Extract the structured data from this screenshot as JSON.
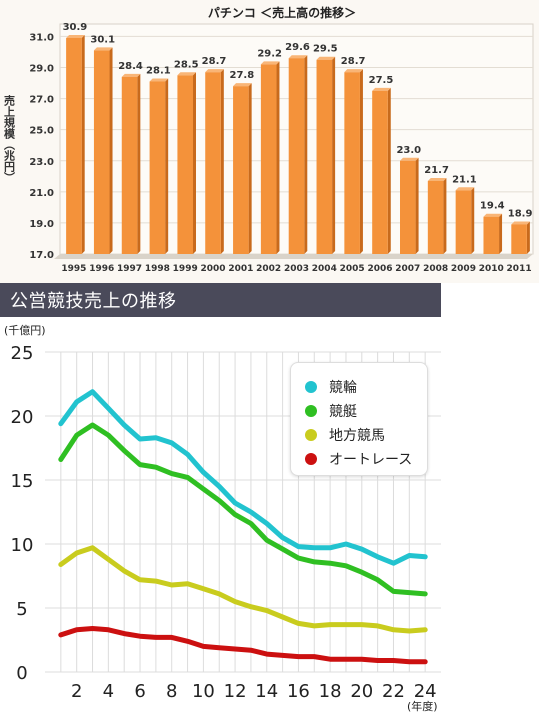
{
  "chart_data": [
    {
      "type": "bar",
      "title": "パチンコ ＜売上高の推移＞",
      "ylabel": "売上規模（兆円）",
      "categories": [
        "1995",
        "1996",
        "1997",
        "1998",
        "1999",
        "2000",
        "2001",
        "2002",
        "2003",
        "2004",
        "2005",
        "2006",
        "2007",
        "2008",
        "2009",
        "2010",
        "2011"
      ],
      "values": [
        30.9,
        30.1,
        28.4,
        28.1,
        28.5,
        28.7,
        27.8,
        29.2,
        29.6,
        29.5,
        28.7,
        27.5,
        23.0,
        21.7,
        21.1,
        19.4,
        18.9
      ],
      "value_labels": [
        "30.9",
        "30.1",
        "28.4",
        "28.1",
        "28.5",
        "28.7",
        "27.8",
        "29.2",
        "29.6",
        "29.5",
        "28.7",
        "27.5",
        "23.0",
        "21.7",
        "21.1",
        "19.4",
        "18.9"
      ],
      "ylim": [
        17.0,
        31.8
      ],
      "yticks": [
        "17.0",
        "19.0",
        "21.0",
        "23.0",
        "25.0",
        "27.0",
        "29.0",
        "31.0"
      ],
      "bar_color": "#f4923a",
      "grid": true
    },
    {
      "type": "line",
      "title": "公営競技売上の推移",
      "yunit": "(千億円)",
      "xunit": "(年度)",
      "x": [
        1,
        2,
        3,
        4,
        5,
        6,
        7,
        8,
        9,
        10,
        11,
        12,
        13,
        14,
        15,
        16,
        17,
        18,
        19,
        20,
        21,
        22,
        23,
        24
      ],
      "xticks": [
        "2",
        "4",
        "6",
        "8",
        "10",
        "12",
        "14",
        "16",
        "18",
        "20",
        "22",
        "24"
      ],
      "ylim": [
        0,
        25
      ],
      "yticks": [
        "0",
        "5",
        "10",
        "15",
        "20",
        "25"
      ],
      "grid": true,
      "legend_position": "top-right",
      "series": [
        {
          "name": "競輪",
          "color": "#22c3cf",
          "values": [
            19.4,
            21.1,
            21.9,
            20.6,
            19.3,
            18.2,
            18.3,
            17.9,
            17.0,
            15.6,
            14.5,
            13.2,
            12.5,
            11.6,
            10.5,
            9.8,
            9.7,
            9.7,
            10.0,
            9.6,
            9.0,
            8.5,
            9.1,
            9.0
          ]
        },
        {
          "name": "競艇",
          "color": "#2fbf22",
          "values": [
            16.6,
            18.5,
            19.3,
            18.5,
            17.3,
            16.2,
            16.0,
            15.5,
            15.2,
            14.3,
            13.4,
            12.3,
            11.6,
            10.3,
            9.6,
            8.9,
            8.6,
            8.5,
            8.3,
            7.8,
            7.2,
            6.3,
            6.2,
            6.1
          ]
        },
        {
          "name": "地方競馬",
          "color": "#c9cc1e",
          "values": [
            8.4,
            9.3,
            9.7,
            8.8,
            7.9,
            7.2,
            7.1,
            6.8,
            6.9,
            6.5,
            6.1,
            5.5,
            5.1,
            4.8,
            4.3,
            3.8,
            3.6,
            3.7,
            3.7,
            3.7,
            3.6,
            3.3,
            3.2,
            3.3
          ]
        },
        {
          "name": "オートレース",
          "color": "#cc1010",
          "values": [
            2.9,
            3.3,
            3.4,
            3.3,
            3.0,
            2.8,
            2.7,
            2.7,
            2.4,
            2.0,
            1.9,
            1.8,
            1.7,
            1.4,
            1.3,
            1.2,
            1.2,
            1.0,
            1.0,
            1.0,
            0.9,
            0.9,
            0.8,
            0.8
          ]
        }
      ]
    }
  ]
}
